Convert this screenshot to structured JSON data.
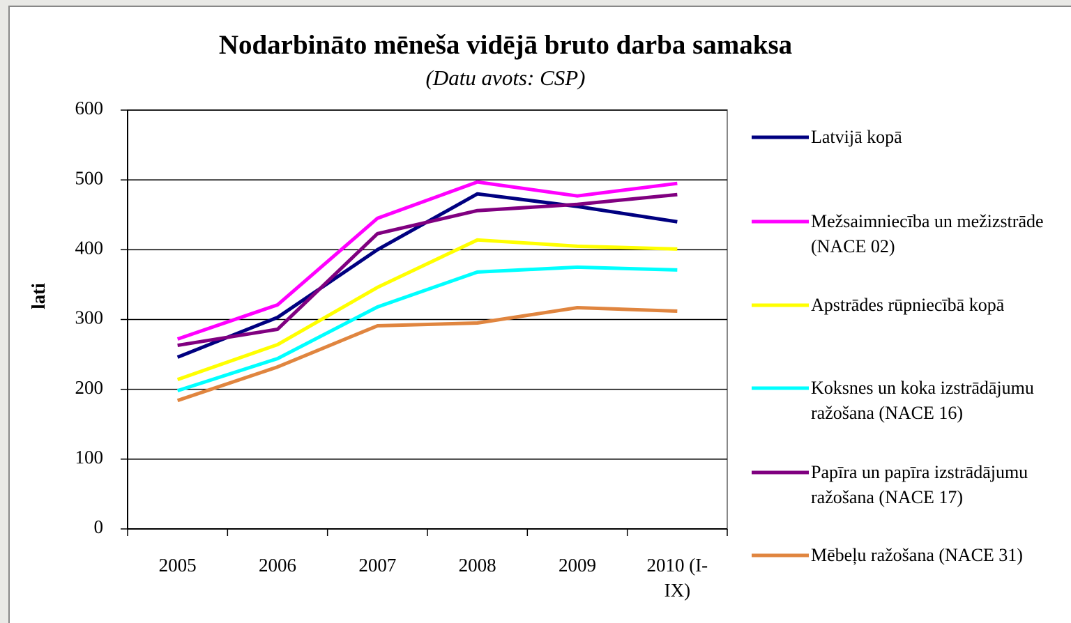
{
  "chart_data": {
    "type": "line",
    "title": "Nodarbināto mēneša vidējā bruto darba samaksa",
    "subtitle": "(Datu avots: CSP)",
    "y_label": "lati",
    "categories": [
      "2005",
      "2006",
      "2007",
      "2008",
      "2009",
      "2010 (I-IX)"
    ],
    "ylim": [
      0,
      600
    ],
    "yticks": [
      0,
      100,
      200,
      300,
      400,
      500,
      600
    ],
    "grid": true,
    "series": [
      {
        "name": "Latvijā kopā",
        "color": "#000080",
        "values": [
          246,
          303,
          400,
          480,
          462,
          440
        ]
      },
      {
        "name": "Mežsaimniecība un mežizstrāde (NACE 02)",
        "color": "#ff00ff",
        "values": [
          272,
          321,
          445,
          497,
          477,
          495
        ]
      },
      {
        "name": "Apstrādes rūpniecībā kopā",
        "color": "#ffff00",
        "values": [
          214,
          264,
          346,
          414,
          405,
          401
        ]
      },
      {
        "name": "Koksnes un koka izstrādājumu ražošana (NACE 16)",
        "color": "#00ffff",
        "values": [
          198,
          244,
          318,
          368,
          375,
          371
        ]
      },
      {
        "name": "Papīra un papīra izstrādājumu ražošana (NACE 17)",
        "color": "#800080",
        "values": [
          263,
          286,
          423,
          456,
          465,
          479
        ]
      },
      {
        "name": "Mēbeļu ražošana (NACE 31)",
        "color": "#e0853f",
        "values": [
          184,
          232,
          291,
          295,
          317,
          312
        ]
      }
    ]
  }
}
